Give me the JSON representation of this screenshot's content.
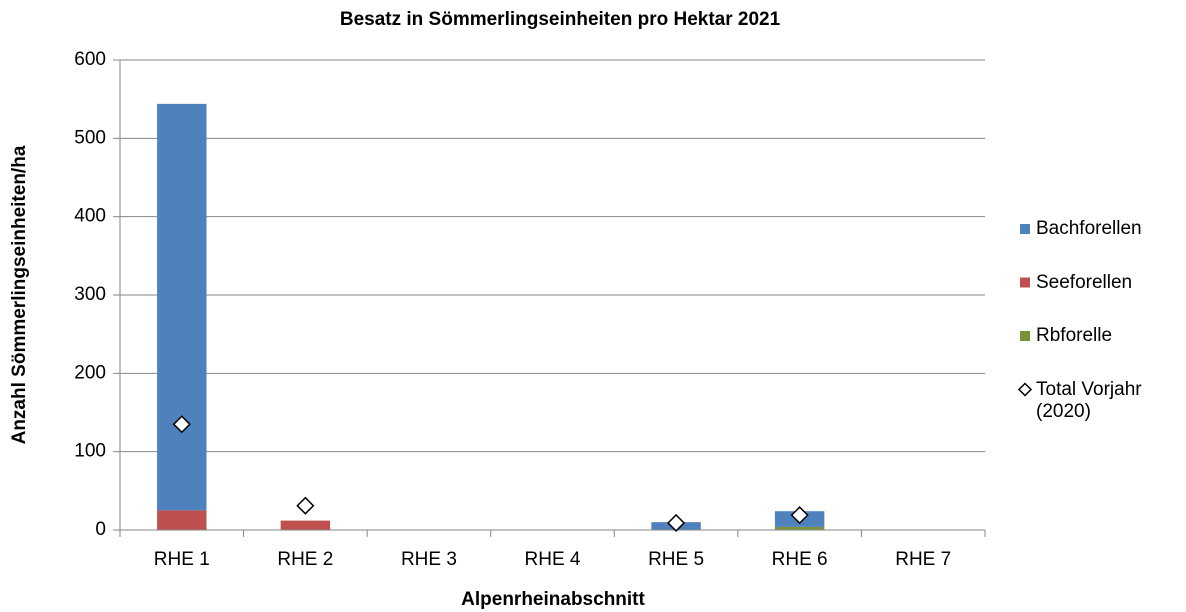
{
  "chart_data": {
    "type": "stacked_bar",
    "title": "Besatz in Sömmerlingseinheiten pro Hektar 2021",
    "x_label": "Alpenrheinabschnitt",
    "y_label": "Anzahl Sömmerlingseinheiten/ha",
    "categories": [
      "RHE 1",
      "RHE 2",
      "RHE 3",
      "RHE 4",
      "RHE 5",
      "RHE 6",
      "RHE 7"
    ],
    "series": [
      {
        "name": "Bachforellen",
        "color": "#4f81bd",
        "values": [
          519,
          0,
          0,
          0,
          10,
          20,
          0
        ]
      },
      {
        "name": "Seeforellen",
        "color": "#c0504d",
        "values": [
          25,
          12,
          0,
          0,
          0,
          0,
          0
        ]
      },
      {
        "name": "Rbforelle",
        "color": "#77933c",
        "values": [
          0,
          0,
          0,
          0,
          0,
          4,
          0
        ]
      }
    ],
    "markers": {
      "name": "Total Vorjahr (2020)",
      "type": "scatter",
      "values": [
        135,
        31,
        null,
        null,
        9,
        19,
        null
      ]
    },
    "ylim": [
      0,
      600
    ],
    "yticks": [
      0,
      100,
      200,
      300,
      400,
      500,
      600
    ],
    "grid": true,
    "legend": "right"
  }
}
